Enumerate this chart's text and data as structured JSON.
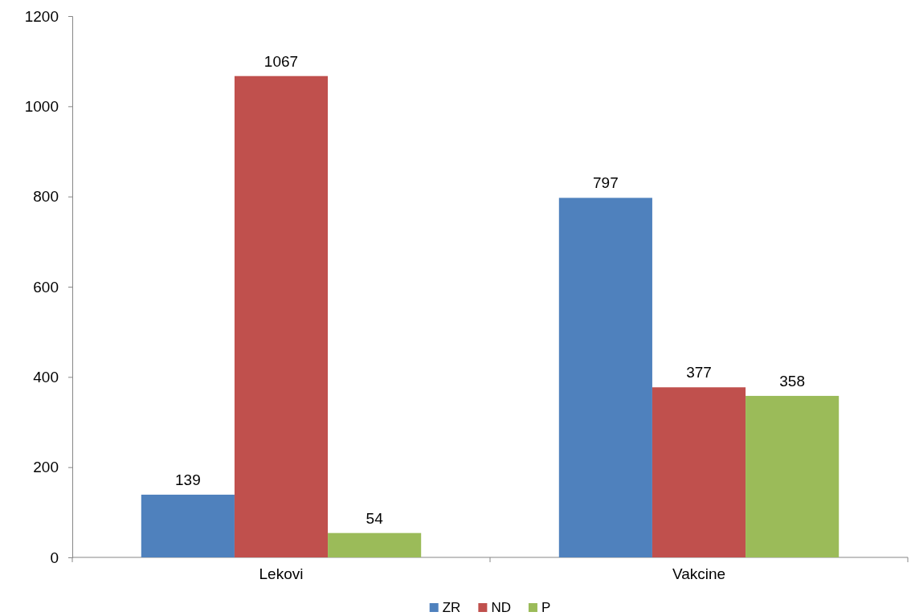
{
  "chart_data": {
    "type": "bar",
    "categories": [
      "Lekovi",
      "Vakcine"
    ],
    "series": [
      {
        "name": "ZR",
        "color": "#4f81bd",
        "values": [
          139,
          797
        ]
      },
      {
        "name": "ND",
        "color": "#c0504d",
        "values": [
          1067,
          377
        ]
      },
      {
        "name": "P",
        "color": "#9bbb59",
        "values": [
          54,
          358
        ]
      }
    ],
    "ylim": [
      0,
      1200
    ],
    "yticks": [
      0,
      200,
      400,
      600,
      800,
      1000,
      1200
    ],
    "grid": false,
    "legend": "bottom",
    "data_labels": true
  }
}
